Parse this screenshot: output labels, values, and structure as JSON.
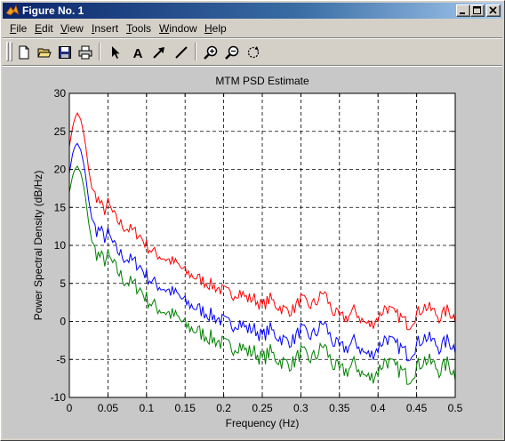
{
  "window": {
    "title": "Figure No. 1",
    "icons": [
      "matlab-logo-icon",
      "minimize-icon",
      "maximize-icon",
      "close-icon"
    ]
  },
  "menubar": {
    "items": [
      {
        "label": "File",
        "accel": "F",
        "rest": "ile"
      },
      {
        "label": "Edit",
        "accel": "E",
        "rest": "dit"
      },
      {
        "label": "View",
        "accel": "V",
        "rest": "iew"
      },
      {
        "label": "Insert",
        "accel": "I",
        "rest": "nsert"
      },
      {
        "label": "Tools",
        "accel": "T",
        "rest": "ools"
      },
      {
        "label": "Window",
        "accel": "W",
        "rest": "indow"
      },
      {
        "label": "Help",
        "accel": "H",
        "rest": "elp"
      }
    ]
  },
  "toolbar": {
    "tools": [
      "new-figure",
      "open-file",
      "save",
      "print",
      "edit-plot",
      "insert-text",
      "insert-arrow",
      "insert-line",
      "zoom-in",
      "zoom-out",
      "rotate-3d"
    ],
    "text_tool_glyph": "A"
  },
  "chart_data": {
    "type": "line",
    "title": "MTM PSD Estimate",
    "xlabel": "Frequency (Hz)",
    "ylabel": "Power Spectral Density (dB/Hz)",
    "xlim": [
      0,
      0.5
    ],
    "ylim": [
      -10,
      30
    ],
    "xticks": [
      0,
      0.05,
      0.1,
      0.15,
      0.2,
      0.25,
      0.3,
      0.35,
      0.4,
      0.45,
      0.5
    ],
    "xtick_labels": [
      "0",
      "0.05",
      "0.1",
      "0.15",
      "0.2",
      "0.25",
      "0.3",
      "0.35",
      "0.4",
      "0.45",
      "0.5"
    ],
    "yticks": [
      -10,
      -5,
      0,
      5,
      10,
      15,
      20,
      25,
      30
    ],
    "ytick_labels": [
      "-10",
      "-5",
      "0",
      "5",
      "10",
      "15",
      "20",
      "25",
      "30"
    ],
    "grid": true,
    "grid_style": "dashed",
    "x": [
      0,
      0.005,
      0.01,
      0.015,
      0.02,
      0.025,
      0.03,
      0.035,
      0.04,
      0.045,
      0.05,
      0.06,
      0.07,
      0.08,
      0.09,
      0.1,
      0.11,
      0.12,
      0.13,
      0.14,
      0.15,
      0.16,
      0.17,
      0.18,
      0.19,
      0.2,
      0.21,
      0.22,
      0.23,
      0.24,
      0.25,
      0.26,
      0.27,
      0.28,
      0.29,
      0.3,
      0.31,
      0.32,
      0.33,
      0.34,
      0.35,
      0.36,
      0.37,
      0.38,
      0.39,
      0.4,
      0.41,
      0.42,
      0.43,
      0.44,
      0.45,
      0.46,
      0.47,
      0.48,
      0.49,
      0.5
    ],
    "series": [
      {
        "color": "#ff0000",
        "values": [
          23,
          26,
          27.5,
          26.5,
          24,
          20,
          17,
          16.5,
          15.5,
          14.5,
          15.5,
          13.5,
          12.5,
          12,
          11.5,
          10,
          9,
          8.5,
          8,
          7.5,
          6.5,
          6,
          5.5,
          5,
          4.5,
          4,
          3.5,
          4,
          3,
          3,
          2,
          3,
          2,
          1.5,
          1.5,
          3,
          2,
          2.5,
          4,
          1.5,
          0.5,
          0.5,
          1.5,
          0,
          -0.5,
          0.5,
          2,
          1,
          0.5,
          -0.5,
          1,
          2,
          1.5,
          0.5,
          1.5,
          0.5
        ]
      },
      {
        "color": "#0000ff",
        "values": [
          19.5,
          22.5,
          23.5,
          22.5,
          20,
          16,
          13,
          12,
          12,
          11,
          11.5,
          9.5,
          8.5,
          8,
          7.5,
          6,
          5,
          4.5,
          4,
          3.5,
          2.5,
          2,
          1.5,
          1,
          0.5,
          0,
          -0.5,
          0,
          -1,
          -1,
          -2,
          -1,
          -2,
          -2.5,
          -2.5,
          -1,
          -2,
          -1.5,
          0,
          -2.5,
          -3.5,
          -3.5,
          -2.5,
          -4,
          -4.5,
          -3.5,
          -2,
          -3,
          -3.5,
          -4.5,
          -3,
          -2,
          -2.5,
          -3.5,
          -2.5,
          -3.5
        ]
      },
      {
        "color": "#008000",
        "values": [
          17,
          19.5,
          20.5,
          19.5,
          17,
          13,
          10,
          9,
          8.5,
          8,
          8.5,
          7,
          5.5,
          5,
          4.5,
          3,
          2,
          1.5,
          1,
          0.5,
          -0.5,
          -1,
          -1.5,
          -2,
          -2.5,
          -3,
          -3.5,
          -3,
          -4,
          -4,
          -5,
          -4,
          -5,
          -5.5,
          -5.5,
          -4,
          -5,
          -4.5,
          -3,
          -5.5,
          -6.5,
          -6.5,
          -5.5,
          -7,
          -7.5,
          -6.5,
          -5,
          -6,
          -6.5,
          -7.5,
          -6,
          -5,
          -5.5,
          -6.5,
          -5.5,
          -7
        ]
      }
    ]
  }
}
